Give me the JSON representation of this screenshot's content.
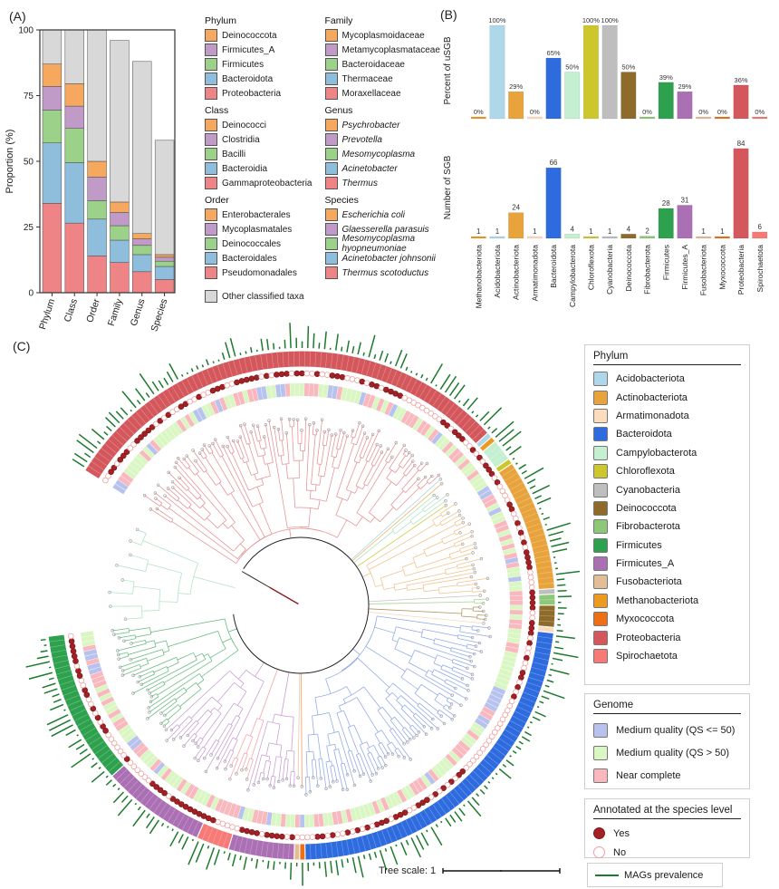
{
  "panelA": {
    "label": "(A)",
    "y_axis_label": "Proportion (%)",
    "y_ticks": [
      0,
      25,
      50,
      75,
      100
    ],
    "categories": [
      "Phylum",
      "Class",
      "Order",
      "Family",
      "Genus",
      "Species"
    ],
    "slot_colors": {
      "red": "#EE8485",
      "blue": "#8FBEDC",
      "green": "#9CD189",
      "purple": "#C09BC8",
      "orange": "#F5A85E",
      "gray": "#D8D8D8"
    },
    "legend_groups": [
      {
        "title": "Phylum",
        "column": 1,
        "italic": false,
        "items": [
          {
            "label": "Deinococcota",
            "color": "#F5A85E"
          },
          {
            "label": "Firmicutes_A",
            "color": "#C09BC8"
          },
          {
            "label": "Firmicutes",
            "color": "#9CD189"
          },
          {
            "label": "Bacteroidota",
            "color": "#8FBEDC"
          },
          {
            "label": "Proteobacteria",
            "color": "#EE8485"
          }
        ]
      },
      {
        "title": "Class",
        "column": 1,
        "italic": false,
        "items": [
          {
            "label": "Deinococci",
            "color": "#F5A85E"
          },
          {
            "label": "Clostridia",
            "color": "#C09BC8"
          },
          {
            "label": "Bacilli",
            "color": "#9CD189"
          },
          {
            "label": "Bacteroidia",
            "color": "#8FBEDC"
          },
          {
            "label": "Gammaproteobacteria",
            "color": "#EE8485"
          }
        ]
      },
      {
        "title": "Order",
        "column": 1,
        "italic": false,
        "items": [
          {
            "label": "Enterobacterales",
            "color": "#F5A85E"
          },
          {
            "label": "Mycoplasmatales",
            "color": "#C09BC8"
          },
          {
            "label": "Deinococcales",
            "color": "#9CD189"
          },
          {
            "label": "Bacteroidales",
            "color": "#8FBEDC"
          },
          {
            "label": "Pseudomonadales",
            "color": "#EE8485"
          }
        ]
      },
      {
        "title": "Family",
        "column": 2,
        "italic": false,
        "items": [
          {
            "label": "Mycoplasmoidaceae",
            "color": "#F5A85E"
          },
          {
            "label": "Metamycoplasmataceae",
            "color": "#C09BC8"
          },
          {
            "label": "Bacteroidaceae",
            "color": "#9CD189"
          },
          {
            "label": "Thermaceae",
            "color": "#8FBEDC"
          },
          {
            "label": "Moraxellaceae",
            "color": "#EE8485"
          }
        ]
      },
      {
        "title": "Genus",
        "column": 2,
        "italic": true,
        "items": [
          {
            "label": "Psychrobacter",
            "color": "#F5A85E"
          },
          {
            "label": "Prevotella",
            "color": "#C09BC8"
          },
          {
            "label": "Mesomycoplasma",
            "color": "#9CD189"
          },
          {
            "label": "Acinetobacter",
            "color": "#8FBEDC"
          },
          {
            "label": "Thermus",
            "color": "#EE8485"
          }
        ]
      },
      {
        "title": "Species",
        "column": 2,
        "italic": true,
        "items": [
          {
            "label": "Escherichia coli",
            "color": "#F5A85E"
          },
          {
            "label": "Glaesserella parasuis",
            "color": "#C09BC8"
          },
          {
            "label": "Mesomycoplasma hyopneumoniae",
            "color": "#9CD189"
          },
          {
            "label": "Acinetobacter johnsonii",
            "color": "#8FBEDC"
          },
          {
            "label": "Thermus scotoductus",
            "color": "#EE8485"
          }
        ]
      }
    ],
    "other_item": {
      "label": "Other classified taxa",
      "color": "#D8D8D8"
    }
  },
  "panelB": {
    "label": "(B)",
    "top_y_label": "Percent of uSGB",
    "bottom_y_label": "Number of SGB"
  },
  "panelC": {
    "label": "(C)",
    "phylum_legend_title": "Phylum",
    "genome_legend_title": "Genome",
    "annotated_legend_title": "Annotated at the species level",
    "tree_scale_label": "Tree scale: 1",
    "mags_label": "MAGs prevalence",
    "phylum_legend": [
      {
        "label": "Acidobacteriota",
        "color": "#AED7E9"
      },
      {
        "label": "Actinobacteriota",
        "color": "#E8A33C"
      },
      {
        "label": "Armatimonadota",
        "color": "#FBDCBD"
      },
      {
        "label": "Bacteroidota",
        "color": "#2E6BDF"
      },
      {
        "label": "Campylobacterota",
        "color": "#C4EFD0"
      },
      {
        "label": "Chloroflexota",
        "color": "#CDC72E"
      },
      {
        "label": "Cyanobacteria",
        "color": "#BEBEBE"
      },
      {
        "label": "Deinococcota",
        "color": "#8E6B2B"
      },
      {
        "label": "Fibrobacterota",
        "color": "#8DC878"
      },
      {
        "label": "Firmicutes",
        "color": "#2EA14E"
      },
      {
        "label": "Firmicutes_A",
        "color": "#AB70B4"
      },
      {
        "label": "Fusobacteriota",
        "color": "#E2BD96"
      },
      {
        "label": "Methanobacteriota",
        "color": "#EC9A21"
      },
      {
        "label": "Myxococcota",
        "color": "#ED7016"
      },
      {
        "label": "Proteobacteria",
        "color": "#D4575C"
      },
      {
        "label": "Spirochaetota",
        "color": "#F87A76"
      }
    ],
    "genome_legend": [
      {
        "label": "Medium quality (QS <= 50)",
        "color": "#B7C3EE"
      },
      {
        "label": "Medium quality (QS > 50)",
        "color": "#D9F6C3"
      },
      {
        "label": "Near complete",
        "color": "#F8B8BE"
      }
    ],
    "annotated_legend": [
      {
        "label": "Yes",
        "fill": "#A32126",
        "border": "#7E1A1A",
        "filled": true
      },
      {
        "label": "No",
        "fill": "#FFFFFF",
        "border": "#F0A0A0",
        "filled": false
      }
    ],
    "mags_color": "#1E7A2E"
  },
  "chart_data": [
    {
      "id": "taxonomy_stacked_proportion",
      "type": "bar",
      "stacked": true,
      "title": "",
      "xlabel": "",
      "ylabel": "Proportion (%)",
      "ylim": [
        0,
        100
      ],
      "categories": [
        "Phylum",
        "Class",
        "Order",
        "Family",
        "Genus",
        "Species"
      ],
      "series": [
        {
          "name": "top_taxon_1_red",
          "color": "#EE8485",
          "values": [
            34,
            26.5,
            14,
            11.5,
            8,
            5
          ]
        },
        {
          "name": "top_taxon_2_blue",
          "color": "#8FBEDC",
          "values": [
            23,
            23,
            14,
            8.5,
            6.5,
            5
          ]
        },
        {
          "name": "top_taxon_3_green",
          "color": "#9CD189",
          "values": [
            12.5,
            13,
            7,
            5.5,
            3.5,
            2
          ]
        },
        {
          "name": "top_taxon_4_purple",
          "color": "#C09BC8",
          "values": [
            9,
            8.5,
            9,
            5,
            2.5,
            1.5
          ]
        },
        {
          "name": "top_taxon_5_orange",
          "color": "#F5A85E",
          "values": [
            8.5,
            8.5,
            6,
            4,
            2,
            1
          ]
        },
        {
          "name": "other_classified_taxa",
          "color": "#D8D8D8",
          "values": [
            13,
            20.5,
            50,
            61.5,
            65.5,
            43.5
          ]
        }
      ],
      "segment_taxa_by_level": {
        "Phylum": [
          "Proteobacteria",
          "Bacteroidota",
          "Firmicutes",
          "Firmicutes_A",
          "Deinococcota"
        ],
        "Class": [
          "Gammaproteobacteria",
          "Bacteroidia",
          "Bacilli",
          "Clostridia",
          "Deinococci"
        ],
        "Order": [
          "Pseudomonadales",
          "Bacteroidales",
          "Deinococcales",
          "Mycoplasmatales",
          "Enterobacterales"
        ],
        "Family": [
          "Moraxellaceae",
          "Thermaceae",
          "Bacteroidaceae",
          "Metamycoplasmataceae",
          "Mycoplasmoidaceae"
        ],
        "Genus": [
          "Thermus",
          "Acinetobacter",
          "Mesomycoplasma",
          "Prevotella",
          "Psychrobacter"
        ],
        "Species": [
          "Thermus scotoductus",
          "Acinetobacter johnsonii",
          "Mesomycoplasma hyopneumoniae",
          "Glaesserella parasuis",
          "Escherichia coli"
        ]
      },
      "legend_position": "right",
      "grid": false
    },
    {
      "id": "percent_usgb",
      "type": "bar",
      "title": "",
      "xlabel": "",
      "ylabel": "Percent of uSGB",
      "ylim": [
        0,
        100
      ],
      "categories": [
        "Methanobacteriota",
        "Acidobacteriota",
        "Actinobacteriota",
        "Armatimonadota",
        "Bacteroidota",
        "Campylobacterota",
        "Chloroflexota",
        "Cyanobacteria",
        "Deinococcota",
        "Fibrobacterota",
        "Firmicutes",
        "Firmicutes_A",
        "Fusobacteriota",
        "Myxococcota",
        "Proteobacteria",
        "Spirochaetota"
      ],
      "values": [
        0,
        100,
        29,
        0,
        65,
        50,
        100,
        100,
        50,
        0,
        39,
        29,
        0,
        0,
        36,
        0
      ],
      "data_labels": [
        "0%",
        "100%",
        "29%",
        "0%",
        "65%",
        "50%",
        "100%",
        "100%",
        "50%",
        "0%",
        "39%",
        "29%",
        "0%",
        "0%",
        "36%",
        "0%"
      ],
      "grid": false
    },
    {
      "id": "number_sgb",
      "type": "bar",
      "title": "",
      "xlabel": "",
      "ylabel": "Number of SGB",
      "ylim": [
        0,
        90
      ],
      "categories": [
        "Methanobacteriota",
        "Acidobacteriota",
        "Actinobacteriota",
        "Armatimonadota",
        "Bacteroidota",
        "Campylobacterota",
        "Chloroflexota",
        "Cyanobacteria",
        "Deinococcota",
        "Fibrobacterota",
        "Firmicutes",
        "Firmicutes_A",
        "Fusobacteriota",
        "Myxococcota",
        "Proteobacteria",
        "Spirochaetota"
      ],
      "values": [
        1,
        1,
        24,
        1,
        66,
        4,
        1,
        1,
        4,
        2,
        28,
        31,
        1,
        1,
        84,
        6
      ],
      "data_labels": [
        "1",
        "1",
        "24",
        "1",
        "66",
        "4",
        "1",
        "1",
        "4",
        "2",
        "28",
        "31",
        "1",
        "1",
        "84",
        "6"
      ],
      "grid": false
    },
    {
      "id": "circular_phylogenetic_tree",
      "type": "circular_tree",
      "tips_total": 256,
      "rings_inner_to_outer": [
        "genome_quality",
        "annotated_species_level",
        "phylum",
        "mags_prevalence_bars"
      ],
      "arc_segments_clockwise": [
        {
          "phylum": "Proteobacteria",
          "tips": 84
        },
        {
          "phylum": "Acidobacteriota",
          "tips": 1
        },
        {
          "phylum": "Methanobacteriota",
          "tips": 1
        },
        {
          "phylum": "Campylobacterota",
          "tips": 4
        },
        {
          "phylum": "Chloroflexota",
          "tips": 1
        },
        {
          "phylum": "Actinobacteriota",
          "tips": 24
        },
        {
          "phylum": "Cyanobacteria",
          "tips": 1
        },
        {
          "phylum": "Fibrobacterota",
          "tips": 2
        },
        {
          "phylum": "Deinococcota",
          "tips": 4
        },
        {
          "phylum": "Armatimonadota",
          "tips": 1
        },
        {
          "phylum": "Bacteroidota",
          "tips": 66
        },
        {
          "phylum": "Myxococcota",
          "tips": 1
        },
        {
          "phylum": "Fusobacteriota",
          "tips": 1
        },
        {
          "phylum": "Firmicutes_A",
          "tips": 12
        },
        {
          "phylum": "Spirochaetota",
          "tips": 6
        },
        {
          "phylum": "Firmicutes_A",
          "tips": 19
        },
        {
          "phylum": "Firmicutes",
          "tips": 28
        }
      ],
      "branch_colors": {
        "Proteobacteria": "#E59093",
        "Acidobacteriota": "#AFD7E8",
        "Methanobacteriota": "#F2B25C",
        "Campylobacterota": "#AEE3C0",
        "Chloroflexota": "#D6CE55",
        "Actinobacteriota": "#EFC28E",
        "Cyanobacteria": "#C6C6C6",
        "Fibrobacterota": "#A4D78F",
        "Deinococcota": "#B2925C",
        "Armatimonadota": "#FAD9BC",
        "Bacteroidota": "#8FA8E6",
        "Myxococcota": "#F29A60",
        "Fusobacteriota": "#E5C9A4",
        "Firmicutes_A": "#C69DD0",
        "Spirochaetota": "#F5A3A8",
        "Firmicutes": "#66B97E"
      },
      "tree_scale": 1
    }
  ]
}
